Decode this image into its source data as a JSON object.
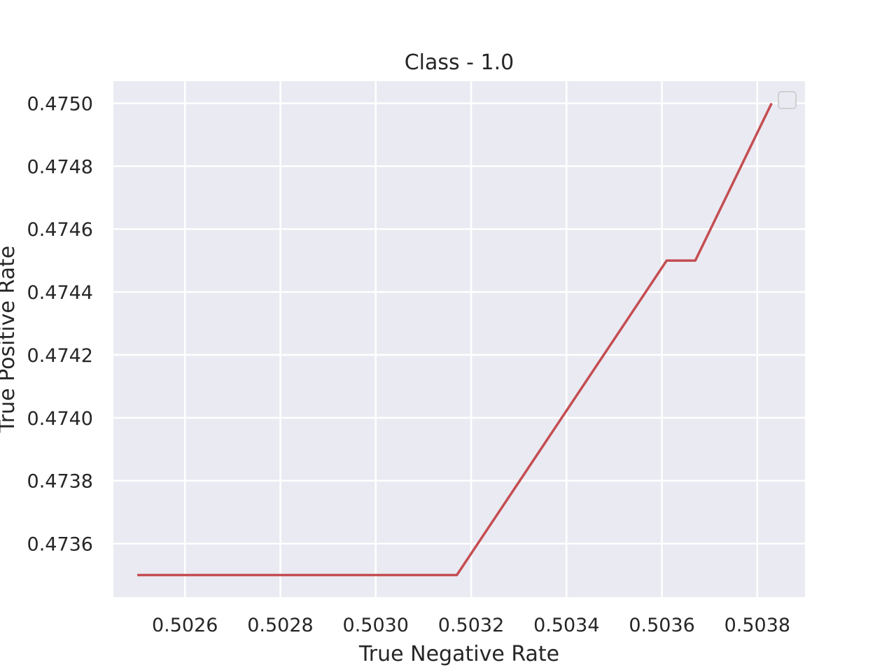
{
  "chart_data": {
    "type": "line",
    "title": "Class - 1.0",
    "xlabel": "True Negative Rate",
    "ylabel": "True Positive Rate",
    "xlim": [
      0.50245,
      0.5039
    ],
    "ylim": [
      0.47343,
      0.47507
    ],
    "x_ticks": [
      0.5026,
      0.5028,
      0.503,
      0.5032,
      0.5034,
      0.5036,
      0.5038
    ],
    "x_tick_labels": [
      "0.5026",
      "0.5028",
      "0.5030",
      "0.5032",
      "0.5034",
      "0.5036",
      "0.5038"
    ],
    "y_ticks": [
      0.4736,
      0.4738,
      0.474,
      0.4742,
      0.4744,
      0.4746,
      0.4748,
      0.475
    ],
    "y_tick_labels": [
      "0.4736",
      "0.4738",
      "0.4740",
      "0.4742",
      "0.4744",
      "0.4746",
      "0.4748",
      "0.4750"
    ],
    "grid": true,
    "legend": "top-right (empty)",
    "series": [
      {
        "color": "#c44e52",
        "x": [
          0.5025,
          0.50317,
          0.50361,
          0.50367,
          0.50383
        ],
        "y": [
          0.4735,
          0.4735,
          0.4745,
          0.4745,
          0.475
        ]
      }
    ],
    "colors": {
      "background": "#eaeaf2",
      "grid": "#ffffff",
      "text": "#262626"
    }
  }
}
